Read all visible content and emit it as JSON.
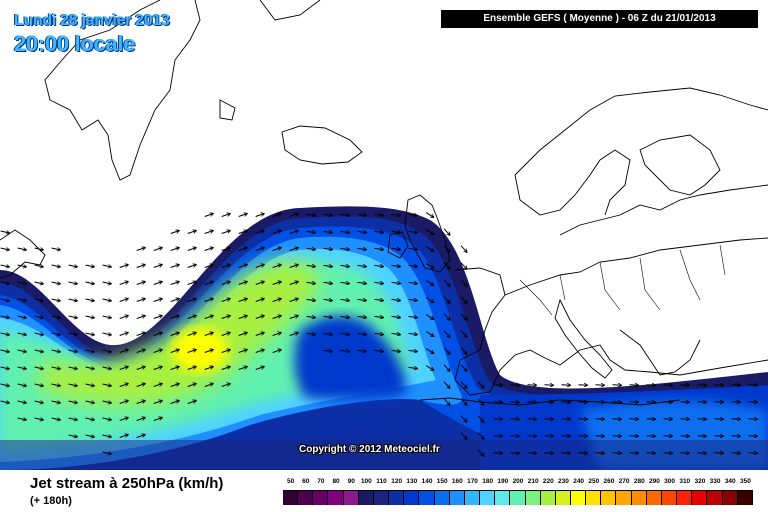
{
  "header": {
    "date": "Lundi 28 janvier 2013",
    "time": "20:00 locale",
    "run": "Ensemble GEFS ( Moyenne )  -  06 Z du 21/01/2013"
  },
  "copyright": "Copyright © 2012 Meteociel.fr",
  "footer": {
    "title": "Jet stream à 250hPa (km/h)",
    "forecast": "(+ 180h)"
  },
  "legend": {
    "labels": [
      "50",
      "60",
      "70",
      "80",
      "90",
      "100",
      "110",
      "120",
      "130",
      "140",
      "150",
      "160",
      "170",
      "180",
      "190",
      "200",
      "210",
      "220",
      "230",
      "240",
      "250",
      "260",
      "270",
      "280",
      "290",
      "300",
      "310",
      "320",
      "330",
      "340",
      "350"
    ],
    "colors": [
      "#330033",
      "#4d004d",
      "#660066",
      "#800080",
      "#8c1a8c",
      "#1a1a66",
      "#1a237e",
      "#0d2fa6",
      "#0038cc",
      "#0050e6",
      "#0a6ef0",
      "#1e90ff",
      "#33b5ff",
      "#4fd2ff",
      "#5fe8e8",
      "#60f0b0",
      "#7ef07e",
      "#a8f040",
      "#d6f01e",
      "#ffff00",
      "#ffe000",
      "#ffc400",
      "#ffa500",
      "#ff8c00",
      "#ff6a00",
      "#ff4500",
      "#ff2200",
      "#e60000",
      "#b80000",
      "#8a0000",
      "#3a0000"
    ]
  },
  "colors": {
    "ocean": "#ffffff",
    "land_line": "#000000",
    "jet_core": "#ffff00"
  }
}
